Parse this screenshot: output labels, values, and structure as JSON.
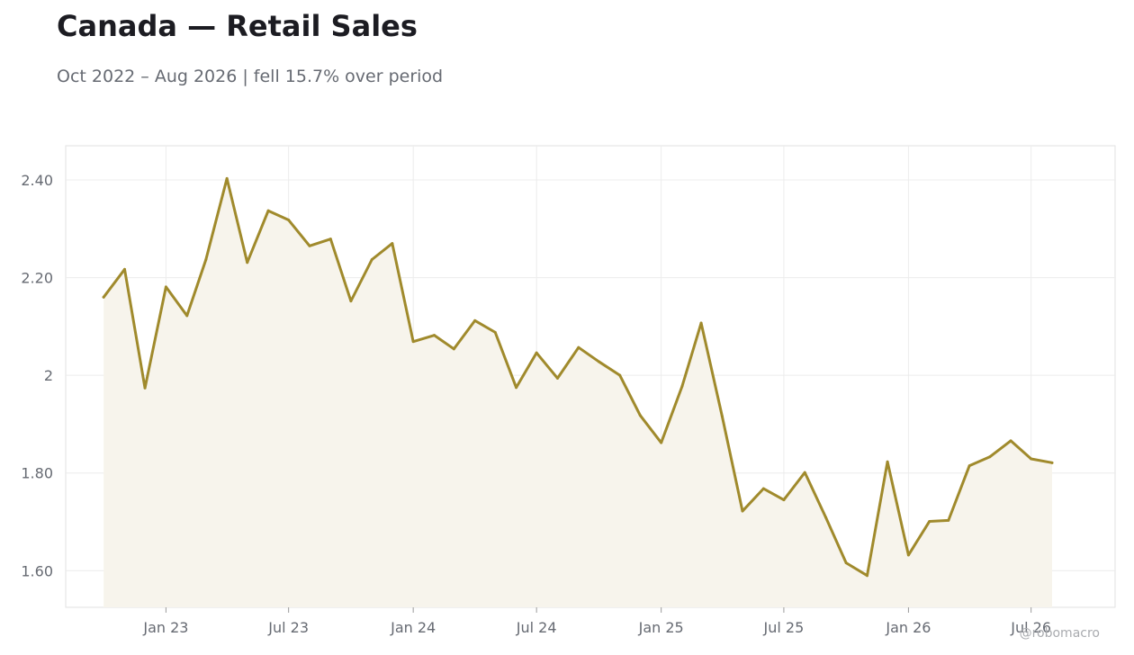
{
  "title": "Canada — Retail Sales",
  "subtitle": "Oct 2022 – Aug 2026 | fell 15.7% over period",
  "watermark": "@robomacro",
  "colors": {
    "line": "#a08a2c",
    "fill": "#f7f4ec",
    "grid": "#ececec",
    "frame": "#e2e2e2"
  },
  "chart_data": {
    "type": "area",
    "title": "Canada — Retail Sales",
    "subtitle": "Oct 2022 – Aug 2026 | fell 15.7% over period",
    "xlabel": "",
    "ylabel": "",
    "grid": true,
    "ylim": [
      1.525,
      2.47
    ],
    "xlim": [
      "2022-08-06",
      "2026-11-02"
    ],
    "y_ticks": [
      {
        "value": 1.6,
        "label": "1.60"
      },
      {
        "value": 1.8,
        "label": "1.80"
      },
      {
        "value": 2.0,
        "label": "2"
      },
      {
        "value": 2.2,
        "label": "2.20"
      },
      {
        "value": 2.4,
        "label": "2.40"
      }
    ],
    "x_ticks": [
      {
        "value": "2023-01-01",
        "label": "Jan 23"
      },
      {
        "value": "2023-07-01",
        "label": "Jul 23"
      },
      {
        "value": "2024-01-01",
        "label": "Jan 24"
      },
      {
        "value": "2024-07-01",
        "label": "Jul 24"
      },
      {
        "value": "2025-01-01",
        "label": "Jan 25"
      },
      {
        "value": "2025-07-01",
        "label": "Jul 25"
      },
      {
        "value": "2026-01-01",
        "label": "Jan 26"
      },
      {
        "value": "2026-07-01",
        "label": "Jul 26"
      }
    ],
    "series": [
      {
        "x": [
          "2022-10-01",
          "2022-11-01",
          "2022-12-01",
          "2023-01-01",
          "2023-02-01",
          "2023-03-01",
          "2023-04-01",
          "2023-05-01",
          "2023-06-01",
          "2023-07-01",
          "2023-08-01",
          "2023-09-01",
          "2023-10-01",
          "2023-11-01",
          "2023-12-01",
          "2024-01-01",
          "2024-02-01",
          "2024-03-01",
          "2024-04-01",
          "2024-05-01",
          "2024-06-01",
          "2024-07-01",
          "2024-08-01",
          "2024-09-01",
          "2024-10-01",
          "2024-11-01",
          "2024-12-01",
          "2025-01-01",
          "2025-02-01",
          "2025-03-01",
          "2025-04-01",
          "2025-05-01",
          "2025-06-01",
          "2025-07-01",
          "2025-08-01",
          "2025-09-01",
          "2025-10-01",
          "2025-11-01",
          "2025-12-01",
          "2026-01-01",
          "2026-02-01",
          "2026-03-01",
          "2026-04-01",
          "2026-05-01",
          "2026-06-01",
          "2026-07-01",
          "2026-08-01"
        ],
        "values": [
          2.16,
          2.217,
          1.974,
          2.181,
          2.122,
          2.237,
          2.403,
          2.231,
          2.337,
          2.318,
          2.265,
          2.279,
          2.152,
          2.237,
          2.27,
          2.069,
          2.082,
          2.054,
          2.112,
          2.088,
          1.975,
          2.046,
          1.994,
          2.057,
          2.028,
          2.0,
          1.918,
          1.862,
          1.978,
          2.107,
          1.916,
          1.722,
          1.768,
          1.745,
          1.801,
          1.709,
          1.616,
          1.59,
          1.823,
          1.632,
          1.701,
          1.703,
          1.815,
          1.833,
          1.866,
          1.829,
          1.821
        ]
      }
    ]
  }
}
